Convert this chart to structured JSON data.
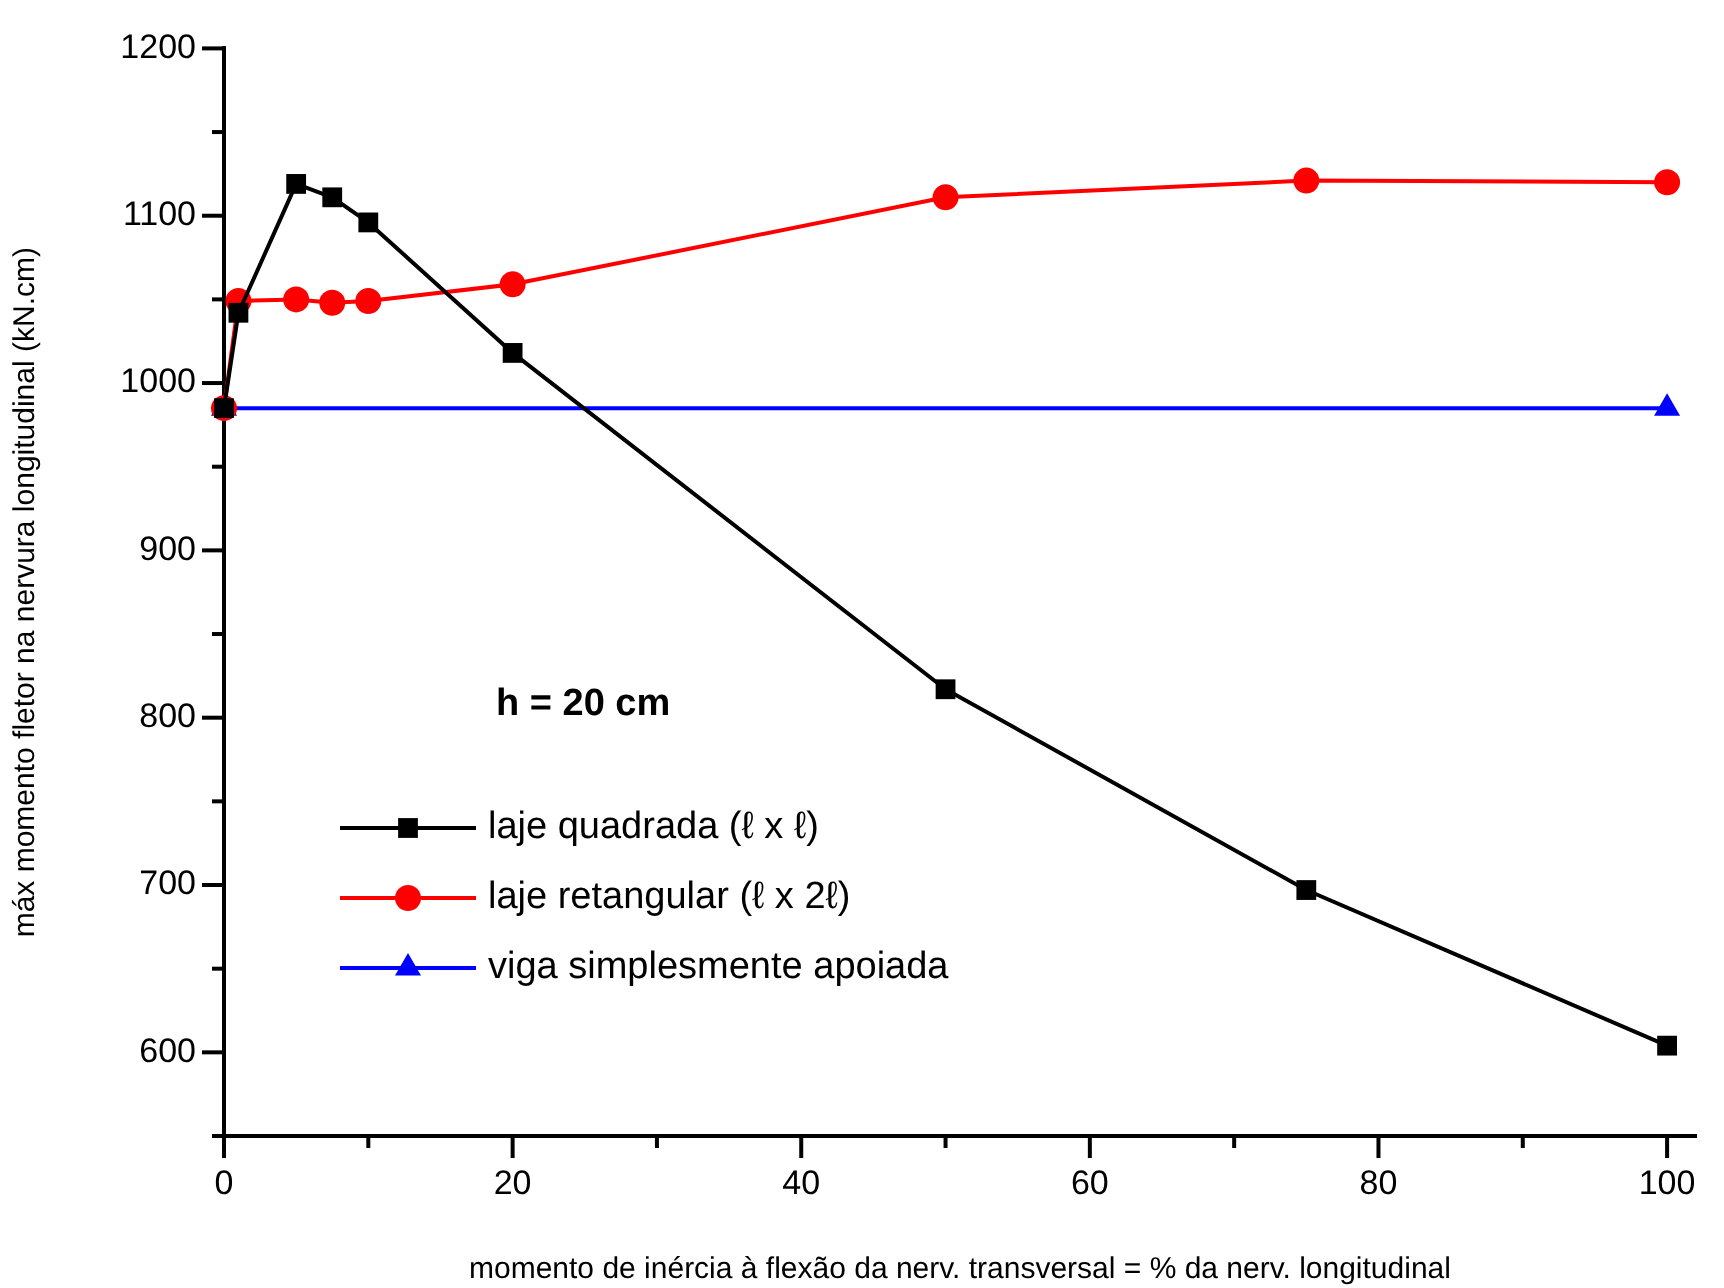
{
  "chart_data": {
    "type": "line",
    "xlabel": "momento de inércia à flexão da nerv. transversal = % da nerv. longitudinal",
    "ylabel": "máx momento fletor na nervura longitudinal (kN.cm)",
    "annotations": [
      "h = 20 cm"
    ],
    "x": [
      0,
      1,
      5,
      7.5,
      10,
      20,
      50,
      75,
      100
    ],
    "series": [
      {
        "name": "laje quadrada (ℓ x ℓ)",
        "color": "#000000",
        "marker": "square",
        "values": [
          985,
          1042,
          1119,
          1111,
          1096,
          1018,
          817,
          697,
          604
        ]
      },
      {
        "name": "laje retangular (ℓ x 2ℓ)",
        "color": "#ff0000",
        "marker": "circle",
        "values": [
          985,
          1049,
          1050,
          1048,
          1049,
          1059,
          1111,
          1121,
          1120
        ]
      },
      {
        "name": "viga simplesmente apoiada",
        "color": "#0000ff",
        "marker": "triangle",
        "x": [
          0,
          100
        ],
        "values": [
          985,
          985
        ]
      }
    ],
    "xlim": [
      0,
      102
    ],
    "ylim": [
      550,
      1200
    ],
    "xticks": [
      0,
      {
        "value": 10,
        "label": null
      },
      20,
      {
        "value": 30,
        "label": null
      },
      40,
      {
        "value": 50,
        "label": null
      },
      60,
      {
        "value": 70,
        "label": null
      },
      80,
      {
        "value": 90,
        "label": null
      },
      100
    ],
    "yticks": [
      {
        "value": 550,
        "label": null
      },
      600,
      {
        "value": 650,
        "label": null
      },
      700,
      {
        "value": 750,
        "label": null
      },
      800,
      {
        "value": 850,
        "label": null
      },
      900,
      {
        "value": 950,
        "label": null
      },
      1000,
      {
        "value": 1050,
        "label": null
      },
      1100,
      {
        "value": 1150,
        "label": null
      },
      1200
    ],
    "grid": false,
    "legend": "bottom left",
    "line_style": "solid"
  }
}
